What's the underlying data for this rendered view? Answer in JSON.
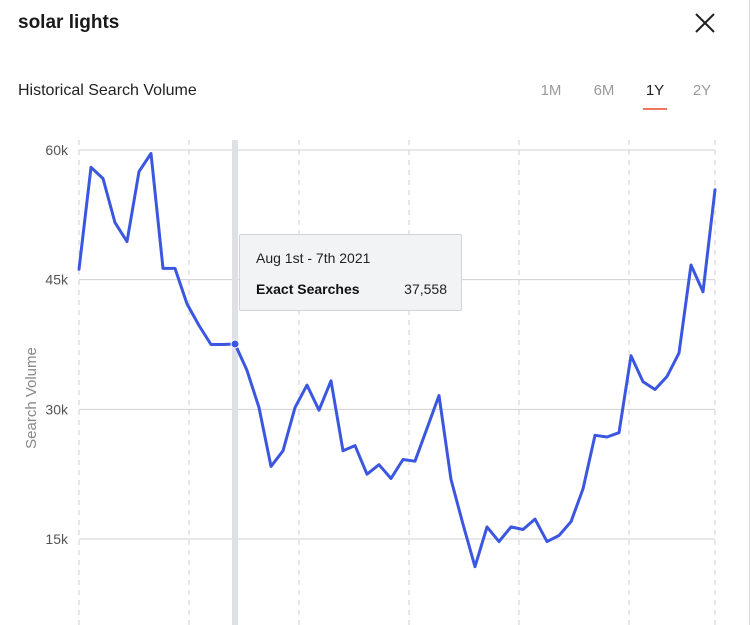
{
  "header": {
    "title": "solar lights",
    "close_icon": "close-icon"
  },
  "section": {
    "title": "Historical Search Volume"
  },
  "range_tabs": [
    {
      "label": "1M",
      "active": false
    },
    {
      "label": "6M",
      "active": false
    },
    {
      "label": "1Y",
      "active": true
    },
    {
      "label": "2Y",
      "active": false
    }
  ],
  "colors": {
    "line": "#3b57e0",
    "accent_underline": "#f0765f",
    "grid": "#d0d0d0",
    "hover_band": "#dde1e5"
  },
  "tooltip": {
    "date": "Aug 1st - 7th 2021",
    "label": "Exact Searches",
    "value": "37,558"
  },
  "chart_data": {
    "type": "line",
    "ylabel": "Search Volume",
    "ylim": [
      10000,
      61000
    ],
    "yticks": [
      15000,
      30000,
      45000,
      60000
    ],
    "ytick_labels": [
      "15k",
      "30k",
      "45k",
      "60k"
    ],
    "grid": true,
    "hover_index": 13,
    "series": [
      {
        "values": [
          46200,
          58000,
          56700,
          51600,
          49400,
          57500,
          59600,
          46300,
          46300,
          42200,
          39700,
          37500,
          37500,
          37558,
          34500,
          30200,
          23400,
          25200,
          30200,
          32800,
          29900,
          33300,
          25200,
          25800,
          22500,
          23600,
          22000,
          24200,
          24000,
          27800,
          31600,
          21900,
          16700,
          11800,
          16400,
          14700,
          16400,
          16100,
          17300,
          14700,
          15400,
          17000,
          20800,
          27000,
          26800,
          27300,
          36200,
          33200,
          32300,
          33800,
          36500,
          46700,
          43600,
          55400
        ]
      }
    ]
  }
}
